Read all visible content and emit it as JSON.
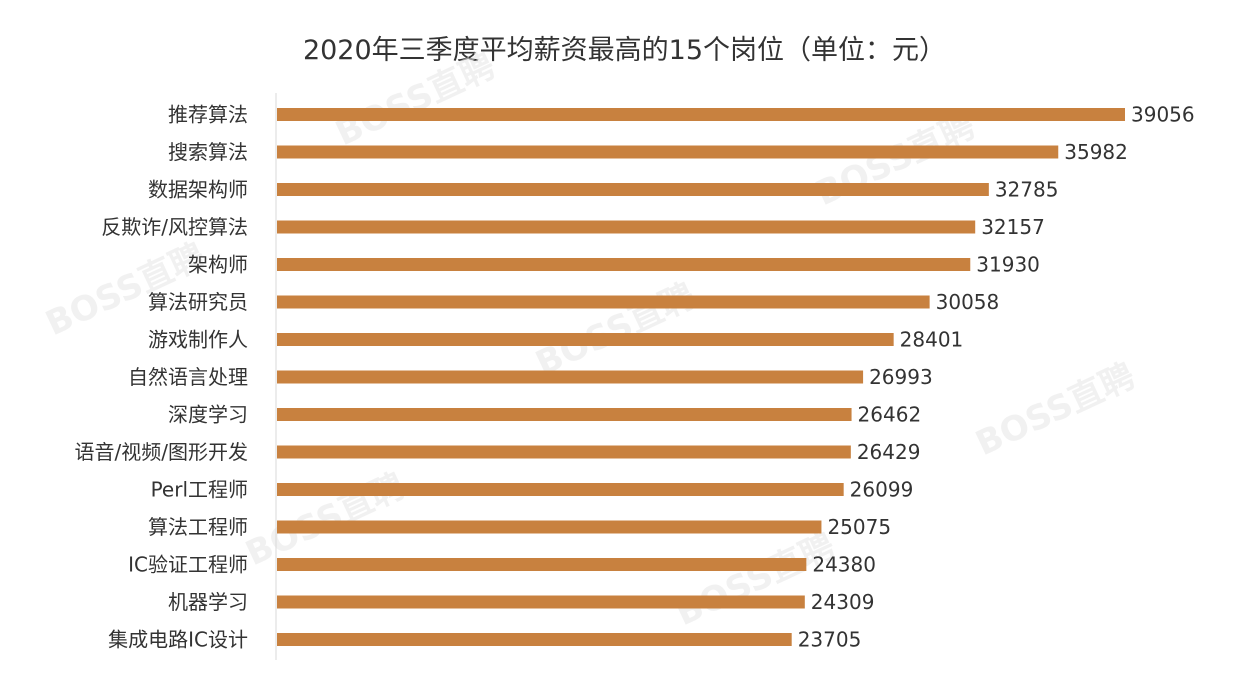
{
  "chart_data": {
    "type": "bar",
    "orientation": "horizontal",
    "title": "2020年三季度平均薪资最高的15个岗位（单位：元）",
    "categories": [
      "推荐算法",
      "搜索算法",
      "数据架构师",
      "反欺诈/风控算法",
      "架构师",
      "算法研究员",
      "游戏制作人",
      "自然语言处理",
      "深度学习",
      "语音/视频/图形开发",
      "Perl工程师",
      "算法工程师",
      "IC验证工程师",
      "机器学习",
      "集成电路IC设计"
    ],
    "values": [
      39056,
      35982,
      32785,
      32157,
      31930,
      30058,
      28401,
      26993,
      26462,
      26429,
      26099,
      25075,
      24380,
      24309,
      23705
    ],
    "xlim": [
      0,
      39056
    ],
    "bar_color": "#c8813f",
    "data_labels": true,
    "grid": false
  },
  "watermark": "BOSS直聘"
}
